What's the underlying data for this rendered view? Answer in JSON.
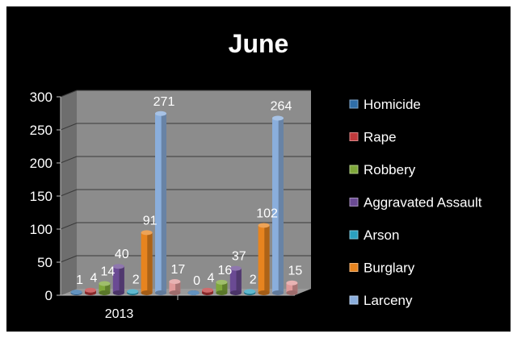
{
  "chart_data": {
    "type": "bar",
    "title": "June",
    "xlabel": "",
    "ylabel": "",
    "ylim": [
      0,
      300
    ],
    "yticks": [
      0,
      50,
      100,
      150,
      200,
      250,
      300
    ],
    "categories": [
      "2013",
      ""
    ],
    "legend_position": "right",
    "series": [
      {
        "name": "Homicide",
        "color": "#2f6ea8",
        "values": [
          1,
          0
        ]
      },
      {
        "name": "Rape",
        "color": "#c0393b",
        "values": [
          4,
          4
        ]
      },
      {
        "name": "Robbery",
        "color": "#7fa83a",
        "values": [
          14,
          16
        ]
      },
      {
        "name": "Aggravated Assault",
        "color": "#6a4a93",
        "values": [
          40,
          37
        ]
      },
      {
        "name": "Arson",
        "color": "#2aa0bf",
        "values": [
          2,
          2
        ]
      },
      {
        "name": "Burglary",
        "color": "#e7841f",
        "values": [
          91,
          102
        ]
      },
      {
        "name": "Larceny",
        "color": "#8aaedc",
        "values": [
          271,
          264
        ]
      },
      {
        "name": "",
        "color": "#e09a9a",
        "values": [
          17,
          15
        ]
      }
    ]
  }
}
